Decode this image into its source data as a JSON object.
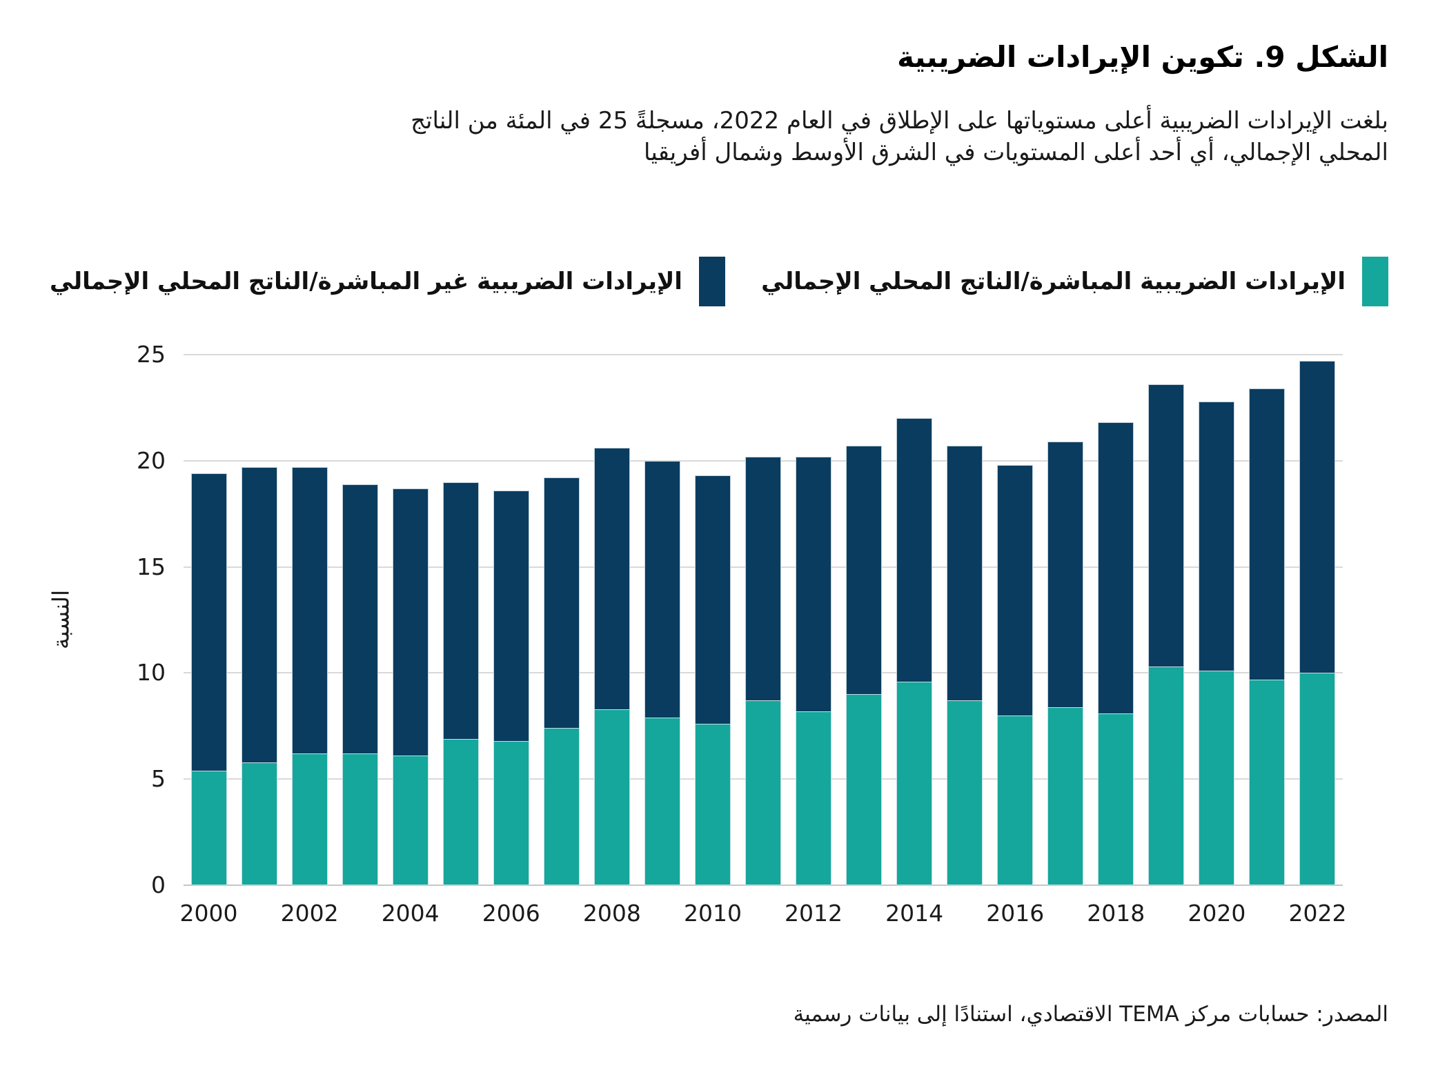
{
  "page": {
    "title": "الشكل 9. تكوين الإيرادات الضريبية",
    "subtitle_line1": "بلغت الإيرادات الضريبية أعلى مستوياتها على الإطلاق في العام 2022، مسجلةً 25 في المئة من الناتج",
    "subtitle_line2": "المحلي الإجمالي، أي أحد أعلى المستويات في الشرق الأوسط وشمال أفريقيا",
    "source": "المصدر: حسابات مركز TEMA الاقتصادي، استنادًا إلى بيانات رسمية"
  },
  "legend": {
    "direct": {
      "label": "الإيرادات الضريبية المباشرة/الناتج المحلي الإجمالي",
      "color": "#15A79B"
    },
    "indirect": {
      "label": "الإيرادات الضريبية غير المباشرة/الناتج المحلي الإجمالي",
      "color": "#0A3C5F"
    }
  },
  "colors": {
    "direct_teal": "#15A79B",
    "indirect_navy": "#0A3C5F",
    "gridline": "#d9d9d9",
    "baseline": "#c6c6c6"
  },
  "chart_data": {
    "type": "bar",
    "stacked": true,
    "title": "الشكل 9. تكوين الإيرادات الضريبية",
    "xlabel": "",
    "ylabel": "النسبة",
    "ylim": [
      0,
      25
    ],
    "yticks": [
      0,
      5,
      10,
      15,
      20,
      25
    ],
    "grid": true,
    "legend_position": "top",
    "categories": [
      "2000",
      "2001",
      "2002",
      "2003",
      "2004",
      "2005",
      "2006",
      "2007",
      "2008",
      "2009",
      "2010",
      "2011",
      "2012",
      "2013",
      "2014",
      "2015",
      "2016",
      "2017",
      "2018",
      "2019",
      "2020",
      "2021",
      "2022"
    ],
    "x_labeled_ticks": [
      "2000",
      "2002",
      "2004",
      "2006",
      "2008",
      "2010",
      "2012",
      "2014",
      "2016",
      "2018",
      "2020",
      "2022"
    ],
    "series": [
      {
        "name": "الإيرادات الضريبية المباشرة/الناتج المحلي الإجمالي",
        "color": "#15A79B",
        "values": [
          5.4,
          5.8,
          6.2,
          6.2,
          6.1,
          6.9,
          6.8,
          7.4,
          8.3,
          7.9,
          7.6,
          8.7,
          8.2,
          9.0,
          9.6,
          8.7,
          8.0,
          8.4,
          8.1,
          10.3,
          10.1,
          9.7,
          10.0
        ]
      },
      {
        "name": "الإيرادات الضريبية غير المباشرة/الناتج المحلي الإجمالي",
        "color": "#0A3C5F",
        "values": [
          14.0,
          13.9,
          13.5,
          12.7,
          12.6,
          12.1,
          11.8,
          11.8,
          12.3,
          12.1,
          11.7,
          11.5,
          12.0,
          11.7,
          12.4,
          12.0,
          11.8,
          12.5,
          13.7,
          13.3,
          12.7,
          13.7,
          14.7
        ]
      }
    ],
    "stacked_totals": [
      19.4,
      19.7,
      19.7,
      18.9,
      18.7,
      19.0,
      18.6,
      19.2,
      20.6,
      20.0,
      19.3,
      20.2,
      20.2,
      20.7,
      22.0,
      20.7,
      19.8,
      20.9,
      21.8,
      23.6,
      22.8,
      23.4,
      24.7
    ]
  }
}
